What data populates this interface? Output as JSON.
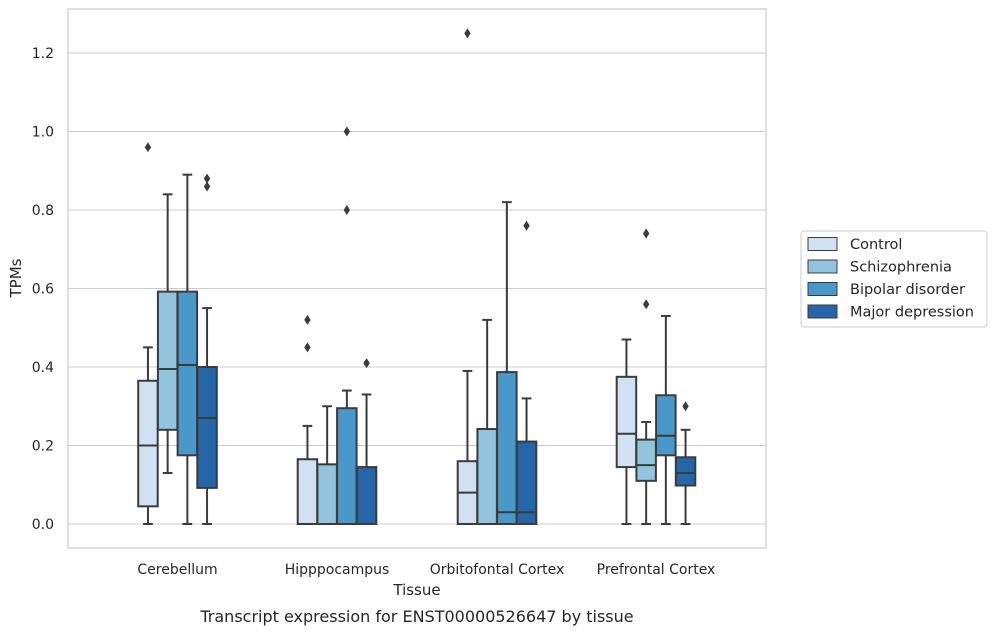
{
  "chart_data": {
    "type": "boxplot",
    "title": "",
    "caption": "Transcript expression for ENST00000526647 by tissue",
    "xlabel": "Tissue",
    "ylabel": "TPMs",
    "ylim": [
      -0.06,
      1.32
    ],
    "yticks": [
      0.0,
      0.2,
      0.4,
      0.6,
      0.8,
      1.0,
      1.2
    ],
    "ytick_labels": [
      "0.0",
      "0.2",
      "0.4",
      "0.6",
      "0.8",
      "1.0",
      "1.2"
    ],
    "grid": "horizontal",
    "legend_position": "right",
    "categories": [
      "Cerebellum",
      "Hipppocampus",
      "Orbitofontal Cortex",
      "Prefrontal Cortex"
    ],
    "series": [
      {
        "name": "Control",
        "color": "#cfe1f2",
        "boxes": [
          {
            "whislo": 0.0,
            "q1": 0.045,
            "med": 0.2,
            "q3": 0.365,
            "whishi": 0.45,
            "fliers": [
              0.96
            ]
          },
          {
            "whislo": 0.0,
            "q1": 0.0,
            "med": 0.0,
            "q3": 0.165,
            "whishi": 0.25,
            "fliers": [
              0.45,
              0.52
            ]
          },
          {
            "whislo": 0.0,
            "q1": 0.0,
            "med": 0.08,
            "q3": 0.16,
            "whishi": 0.39,
            "fliers": [
              1.25
            ]
          },
          {
            "whislo": 0.0,
            "q1": 0.145,
            "med": 0.23,
            "q3": 0.375,
            "whishi": 0.47,
            "fliers": []
          }
        ]
      },
      {
        "name": "Schizophrenia",
        "color": "#93c4de",
        "boxes": [
          {
            "whislo": 0.13,
            "q1": 0.24,
            "med": 0.395,
            "q3": 0.592,
            "whishi": 0.84,
            "fliers": []
          },
          {
            "whislo": 0.0,
            "q1": 0.0,
            "med": 0.0,
            "q3": 0.152,
            "whishi": 0.3,
            "fliers": []
          },
          {
            "whislo": 0.0,
            "q1": 0.0,
            "med": 0.0,
            "q3": 0.242,
            "whishi": 0.52,
            "fliers": []
          },
          {
            "whislo": 0.0,
            "q1": 0.11,
            "med": 0.15,
            "q3": 0.215,
            "whishi": 0.26,
            "fliers": [
              0.56,
              0.74
            ]
          }
        ]
      },
      {
        "name": "Bipolar disorder",
        "color": "#4a98c9",
        "boxes": [
          {
            "whislo": 0.0,
            "q1": 0.175,
            "med": 0.405,
            "q3": 0.592,
            "whishi": 0.89,
            "fliers": []
          },
          {
            "whislo": 0.0,
            "q1": 0.0,
            "med": 0.0,
            "q3": 0.295,
            "whishi": 0.34,
            "fliers": [
              0.8,
              1.0
            ]
          },
          {
            "whislo": 0.0,
            "q1": 0.0,
            "med": 0.03,
            "q3": 0.387,
            "whishi": 0.82,
            "fliers": []
          },
          {
            "whislo": 0.0,
            "q1": 0.175,
            "med": 0.225,
            "q3": 0.328,
            "whishi": 0.53,
            "fliers": []
          }
        ]
      },
      {
        "name": "Major depression",
        "color": "#2565a8",
        "boxes": [
          {
            "whislo": 0.0,
            "q1": 0.092,
            "med": 0.27,
            "q3": 0.4,
            "whishi": 0.55,
            "fliers": [
              0.86,
              0.88
            ]
          },
          {
            "whislo": 0.0,
            "q1": 0.0,
            "med": 0.0,
            "q3": 0.145,
            "whishi": 0.33,
            "fliers": [
              0.41
            ]
          },
          {
            "whislo": 0.0,
            "q1": 0.0,
            "med": 0.03,
            "q3": 0.21,
            "whishi": 0.32,
            "fliers": [
              0.76
            ]
          },
          {
            "whislo": 0.0,
            "q1": 0.098,
            "med": 0.13,
            "q3": 0.17,
            "whishi": 0.24,
            "fliers": [
              0.3
            ]
          }
        ]
      }
    ]
  }
}
